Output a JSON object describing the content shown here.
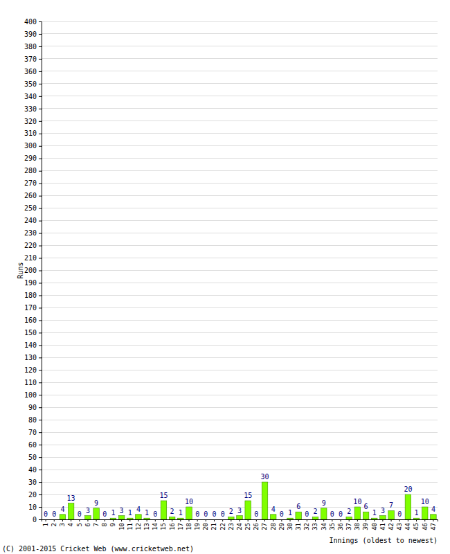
{
  "chart_data": {
    "type": "bar",
    "y_label": "Runs",
    "x_label": "Innings (oldest to newest)",
    "annotations": [
      "(C) 2001-2015 Cricket Web (www.cricketweb.net)"
    ],
    "categories": [
      "1",
      "2",
      "3",
      "4",
      "5",
      "6",
      "7",
      "8",
      "9",
      "10",
      "11",
      "12",
      "13",
      "14",
      "15",
      "16",
      "17",
      "18",
      "19",
      "20",
      "21",
      "22",
      "23",
      "24",
      "25",
      "26",
      "27",
      "28",
      "29",
      "30",
      "31",
      "32",
      "33",
      "34",
      "35",
      "36",
      "37",
      "38",
      "39",
      "40",
      "41",
      "42",
      "43",
      "44",
      "45",
      "46",
      "47"
    ],
    "values": [
      0,
      0,
      4,
      13,
      0,
      3,
      9,
      0,
      1,
      3,
      1,
      4,
      1,
      0,
      15,
      2,
      1,
      10,
      0,
      0,
      0,
      0,
      2,
      3,
      15,
      0,
      30,
      4,
      0,
      1,
      6,
      0,
      2,
      9,
      0,
      0,
      2,
      10,
      6,
      1,
      3,
      7,
      0,
      20,
      1,
      10,
      4
    ],
    "color": "#80ff00",
    "ylim": [
      0,
      400
    ],
    "yticks": [
      0,
      10,
      20,
      30,
      40,
      50,
      60,
      70,
      80,
      90,
      100,
      110,
      120,
      130,
      140,
      150,
      160,
      170,
      180,
      190,
      200,
      210,
      220,
      230,
      240,
      250,
      260,
      270,
      280,
      290,
      300,
      310,
      320,
      330,
      340,
      350,
      360,
      370,
      380,
      390,
      400
    ],
    "grid": true,
    "data_labels": true
  }
}
